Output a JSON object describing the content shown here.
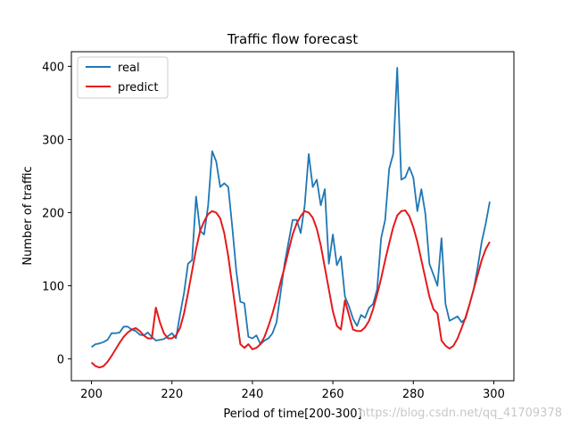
{
  "chart_data": {
    "type": "line",
    "title": "Traffic flow forecast",
    "xlabel": "Period of time[200-300]",
    "ylabel": "Number of traffic",
    "xlim": [
      195,
      305
    ],
    "ylim": [
      -30,
      420
    ],
    "xticks": [
      200,
      220,
      240,
      260,
      280,
      300
    ],
    "yticks": [
      0,
      100,
      200,
      300,
      400
    ],
    "grid": false,
    "legend_placement": "top-left",
    "x": [
      200,
      201,
      202,
      203,
      204,
      205,
      206,
      207,
      208,
      209,
      210,
      211,
      212,
      213,
      214,
      215,
      216,
      217,
      218,
      219,
      220,
      221,
      222,
      223,
      224,
      225,
      226,
      227,
      228,
      229,
      230,
      231,
      232,
      233,
      234,
      235,
      236,
      237,
      238,
      239,
      240,
      241,
      242,
      243,
      244,
      245,
      246,
      247,
      248,
      249,
      250,
      251,
      252,
      253,
      254,
      255,
      256,
      257,
      258,
      259,
      260,
      261,
      262,
      263,
      264,
      265,
      266,
      267,
      268,
      269,
      270,
      271,
      272,
      273,
      274,
      275,
      276,
      277,
      278,
      279,
      280,
      281,
      282,
      283,
      284,
      285,
      286,
      287,
      288,
      289,
      290,
      291,
      292,
      293,
      294,
      295,
      296,
      297,
      298,
      299
    ],
    "series": [
      {
        "name": "real",
        "color": "#1f77b4",
        "values": [
          16,
          20,
          21,
          23,
          26,
          35,
          35,
          36,
          44,
          44,
          40,
          38,
          33,
          32,
          36,
          30,
          25,
          26,
          27,
          31,
          35,
          28,
          60,
          90,
          130,
          135,
          222,
          175,
          170,
          210,
          284,
          270,
          235,
          240,
          235,
          180,
          120,
          78,
          76,
          30,
          28,
          32,
          20,
          25,
          28,
          35,
          50,
          90,
          130,
          160,
          190,
          190,
          172,
          210,
          280,
          235,
          245,
          210,
          232,
          130,
          170,
          128,
          140,
          85,
          72,
          55,
          45,
          60,
          56,
          70,
          75,
          95,
          165,
          190,
          260,
          280,
          398,
          245,
          248,
          262,
          248,
          202,
          232,
          198,
          130,
          115,
          100,
          165,
          75,
          52,
          55,
          58,
          50,
          55,
          75,
          95,
          125,
          160,
          185,
          215
        ]
      },
      {
        "name": "predict",
        "color": "#e41a1c",
        "values": [
          -5,
          -10,
          -12,
          -10,
          -4,
          4,
          13,
          22,
          30,
          36,
          40,
          42,
          38,
          32,
          28,
          28,
          70,
          50,
          35,
          28,
          28,
          32,
          42,
          62,
          90,
          120,
          150,
          175,
          188,
          198,
          202,
          200,
          192,
          172,
          140,
          100,
          60,
          20,
          15,
          20,
          13,
          15,
          20,
          30,
          45,
          62,
          82,
          105,
          125,
          148,
          170,
          185,
          195,
          202,
          200,
          193,
          178,
          155,
          125,
          95,
          65,
          45,
          40,
          80,
          60,
          40,
          38,
          38,
          43,
          52,
          68,
          88,
          110,
          135,
          158,
          180,
          196,
          202,
          203,
          195,
          180,
          160,
          135,
          110,
          85,
          68,
          62,
          25,
          18,
          14,
          18,
          28,
          42,
          57,
          75,
          95,
          115,
          135,
          150,
          160
        ]
      }
    ]
  },
  "watermark": "https://blog.csdn.net/qq_41709378"
}
